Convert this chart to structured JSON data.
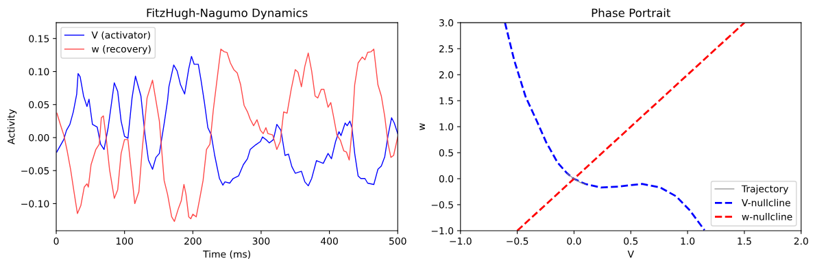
{
  "chart_data": [
    {
      "type": "line",
      "title": "FitzHugh-Nagumo Dynamics",
      "xlabel": "Time (ms)",
      "ylabel": "Activity",
      "xlim": [
        0,
        500
      ],
      "xticks": [
        0,
        100,
        200,
        300,
        400,
        500
      ],
      "ylim": [
        -0.141,
        0.174
      ],
      "yticks": [
        {
          "value": -0.1,
          "label": "−0.10"
        },
        {
          "value": -0.05,
          "label": "−0.05"
        },
        {
          "value": 0,
          "label": "0.00"
        },
        {
          "value": 0.05,
          "label": "0.05"
        },
        {
          "value": 0.1,
          "label": "0.10"
        },
        {
          "value": 0.15,
          "label": "0.15"
        }
      ],
      "grid": false,
      "legend": "top left",
      "marker": "none",
      "line_style": "solid",
      "series": [
        {
          "name": "V (activator)",
          "color": "#0000ff",
          "x": [
            0.7,
            11,
            15,
            20,
            25,
            30,
            32,
            35,
            40,
            45,
            48,
            53,
            60,
            65,
            70,
            76,
            85,
            90,
            95,
            100,
            105,
            111,
            116,
            124,
            130,
            135,
            141,
            146,
            151,
            158,
            163,
            165,
            172,
            177,
            182,
            188,
            194,
            198,
            202,
            208,
            212,
            217,
            222,
            227,
            232,
            239,
            244,
            247,
            254,
            259,
            267,
            274,
            280,
            284,
            292,
            299,
            302,
            307,
            312,
            318,
            323,
            329,
            335,
            340,
            345,
            350,
            359,
            364,
            369,
            374,
            381,
            391,
            398,
            403,
            409,
            414,
            417,
            423,
            426,
            430,
            433,
            437,
            442,
            446,
            452,
            456,
            465,
            471,
            476,
            481,
            486,
            491,
            495,
            500
          ],
          "values": [
            -0.022,
            -0.003,
            0.011,
            0.02,
            0.039,
            0.066,
            0.097,
            0.092,
            0.063,
            0.047,
            0.058,
            0.02,
            0.016,
            -0.01,
            -0.018,
            0.015,
            0.083,
            0.07,
            0.025,
            0.002,
            -0.001,
            0.06,
            0.093,
            0.063,
            0.004,
            -0.034,
            -0.048,
            -0.03,
            -0.024,
            0.021,
            0.056,
            0.077,
            0.11,
            0.101,
            0.08,
            0.066,
            0.104,
            0.123,
            0.111,
            0.111,
            0.087,
            0.053,
            0.015,
            0.004,
            -0.027,
            -0.062,
            -0.072,
            -0.067,
            -0.069,
            -0.062,
            -0.058,
            -0.041,
            -0.032,
            -0.018,
            -0.011,
            -0.006,
            0.001,
            -0.003,
            -0.008,
            -0.003,
            0.02,
            0.011,
            -0.027,
            -0.025,
            -0.044,
            -0.054,
            -0.051,
            -0.067,
            -0.073,
            -0.062,
            -0.035,
            -0.039,
            -0.024,
            -0.032,
            -0.006,
            0.009,
            0.003,
            0.022,
            0.018,
            0.025,
            0.015,
            -0.024,
            -0.058,
            -0.062,
            -0.062,
            -0.069,
            -0.071,
            -0.048,
            -0.043,
            -0.029,
            0.004,
            0.03,
            0.022,
            0.006
          ]
        },
        {
          "name": "w (recovery)",
          "color": "#ff4848",
          "x": [
            1,
            6,
            11,
            16,
            21,
            26,
            31,
            36,
            41,
            45,
            47,
            51,
            58,
            63,
            66,
            69,
            73,
            78,
            85,
            90,
            95,
            100,
            105,
            110,
            115,
            121,
            126,
            133,
            141,
            146,
            151,
            158,
            163,
            169,
            173,
            179,
            183,
            187,
            190,
            194,
            197,
            200,
            205,
            210,
            215,
            220,
            225,
            230,
            237,
            241,
            246,
            250,
            255,
            260,
            265,
            270,
            275,
            280,
            284,
            289,
            294,
            299,
            303,
            307,
            310,
            317,
            323,
            328,
            333,
            338,
            344,
            350,
            354,
            359,
            364,
            369,
            374,
            379,
            383,
            388,
            392,
            398,
            402,
            406,
            411,
            416,
            421,
            425,
            429,
            433,
            437,
            442,
            448,
            452,
            456,
            461,
            465,
            471,
            476,
            481,
            486,
            490,
            494,
            500
          ],
          "values": [
            0.037,
            0.02,
            0.004,
            -0.02,
            -0.048,
            -0.082,
            -0.115,
            -0.103,
            -0.075,
            -0.07,
            -0.075,
            -0.041,
            -0.018,
            -0.01,
            0.03,
            0.033,
            0.001,
            -0.048,
            -0.092,
            -0.079,
            -0.024,
            -0.003,
            -0.003,
            -0.051,
            -0.1,
            -0.082,
            -0.017,
            0.06,
            0.087,
            0.056,
            0.025,
            -0.065,
            -0.086,
            -0.12,
            -0.127,
            -0.107,
            -0.096,
            -0.071,
            -0.086,
            -0.12,
            -0.123,
            -0.116,
            -0.12,
            -0.093,
            -0.065,
            -0.018,
            -0.01,
            0.042,
            0.101,
            0.134,
            0.13,
            0.129,
            0.113,
            0.103,
            0.098,
            0.08,
            0.049,
            0.039,
            0.028,
            0.018,
            0.027,
            0.011,
            0.006,
            0.015,
            0.006,
            0.004,
            -0.018,
            -0.006,
            0.039,
            0.037,
            0.073,
            0.103,
            0.099,
            0.077,
            0.108,
            0.128,
            0.101,
            0.063,
            0.06,
            0.073,
            0.073,
            0.046,
            0.053,
            0.032,
            0.004,
            -0.004,
            -0.02,
            -0.022,
            -0.034,
            0.011,
            0.08,
            0.113,
            0.122,
            0.118,
            0.129,
            0.13,
            0.134,
            0.08,
            0.063,
            0.032,
            -0.01,
            -0.03,
            -0.027,
            0.001
          ]
        }
      ]
    },
    {
      "type": "line",
      "title": "Phase Portrait",
      "xlabel": "V",
      "ylabel": "w",
      "xlim": [
        -1.0,
        2.0
      ],
      "xticks": [
        {
          "value": -1.0,
          "label": "−1.0"
        },
        {
          "value": -0.5,
          "label": "−0.5"
        },
        {
          "value": 0,
          "label": "0.0"
        },
        {
          "value": 0.5,
          "label": "0.5"
        },
        {
          "value": 1.0,
          "label": "1.0"
        },
        {
          "value": 1.5,
          "label": "1.5"
        },
        {
          "value": 2.0,
          "label": "2.0"
        }
      ],
      "ylim": [
        -1.0,
        3.0
      ],
      "yticks": [
        {
          "value": -1.0,
          "label": "−1.0"
        },
        {
          "value": -0.5,
          "label": "−0.5"
        },
        {
          "value": 0,
          "label": "0.0"
        },
        {
          "value": 0.5,
          "label": "0.5"
        },
        {
          "value": 1.0,
          "label": "1.0"
        },
        {
          "value": 1.5,
          "label": "1.5"
        },
        {
          "value": 2.0,
          "label": "2.0"
        },
        {
          "value": 2.5,
          "label": "2.5"
        },
        {
          "value": 3.0,
          "label": "3.0"
        }
      ],
      "grid": false,
      "legend": "bottom right",
      "marker": "none",
      "series": [
        {
          "name": "Trajectory",
          "color": "#808080",
          "line_style": "solid",
          "x": [
            -0.06,
            -0.02,
            0.02,
            0.06,
            0.1
          ],
          "values": [
            0.1,
            0.03,
            -0.03,
            -0.08,
            -0.11
          ]
        },
        {
          "name": "V-nullcline",
          "color": "#0000ff",
          "line_style": "dashed",
          "x": [
            -0.608,
            -0.527,
            -0.427,
            -0.326,
            -0.245,
            -0.145,
            -0.064,
            -0.004,
            0.097,
            0.237,
            0.398,
            0.6,
            0.761,
            0.9,
            1.02,
            1.149
          ],
          "values": [
            3.0,
            2.28,
            1.58,
            1.1,
            0.7,
            0.31,
            0.11,
            0.0,
            -0.1,
            -0.17,
            -0.15,
            -0.1,
            -0.17,
            -0.34,
            -0.61,
            -0.99
          ]
        },
        {
          "name": "w-nullcline",
          "color": "#ff0000",
          "line_style": "dashed",
          "x": [
            -0.5,
            1.5
          ],
          "values": [
            -1.0,
            3.0
          ]
        }
      ]
    }
  ]
}
